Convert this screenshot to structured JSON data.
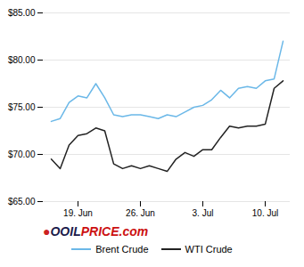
{
  "chart_data": {
    "type": "line",
    "categories": [
      null,
      null,
      null,
      "19. Jun",
      null,
      null,
      null,
      null,
      null,
      null,
      "26. Jun",
      null,
      null,
      null,
      null,
      null,
      null,
      "3. Jul",
      null,
      null,
      null,
      null,
      null,
      null,
      "10. Jul",
      null,
      null
    ],
    "series": [
      {
        "name": "Brent Crude",
        "color": "#6BB8E8",
        "values": [
          73.5,
          73.8,
          75.5,
          76.2,
          76.0,
          77.5,
          76.0,
          74.2,
          74.0,
          74.2,
          74.2,
          74.0,
          73.8,
          74.2,
          74.0,
          74.5,
          75.0,
          75.2,
          75.8,
          76.8,
          76.0,
          77.0,
          77.2,
          77.0,
          77.8,
          78.0,
          82.0
        ]
      },
      {
        "name": "WTI Crude",
        "color": "#222222",
        "values": [
          69.5,
          68.5,
          71.0,
          72.0,
          72.2,
          72.8,
          72.5,
          69.0,
          68.5,
          68.8,
          68.5,
          68.8,
          68.5,
          68.2,
          69.5,
          70.2,
          69.8,
          70.5,
          70.5,
          71.8,
          73.0,
          72.8,
          73.0,
          73.0,
          73.2,
          77.0,
          77.8
        ]
      }
    ],
    "ylim": [
      65.0,
      85.0
    ],
    "yticks": [
      {
        "value": 65.0,
        "label": "$65.00"
      },
      {
        "value": 70.0,
        "label": "$70.00"
      },
      {
        "value": 75.0,
        "label": "$75.00"
      },
      {
        "value": 80.0,
        "label": "$80.00"
      },
      {
        "value": 85.0,
        "label": "$85.00"
      }
    ],
    "grid": true,
    "legend": "bottom",
    "annotations": [
      {
        "text": "●",
        "color": "#cc2222"
      },
      {
        "text": "O",
        "color": "#1a1a4a"
      },
      {
        "text": "OIL",
        "color": "#1a1a4a"
      },
      {
        "text": "PRICE",
        "color": "#cc1111"
      },
      {
        "text": ".com",
        "color": "#cc1111"
      }
    ]
  }
}
